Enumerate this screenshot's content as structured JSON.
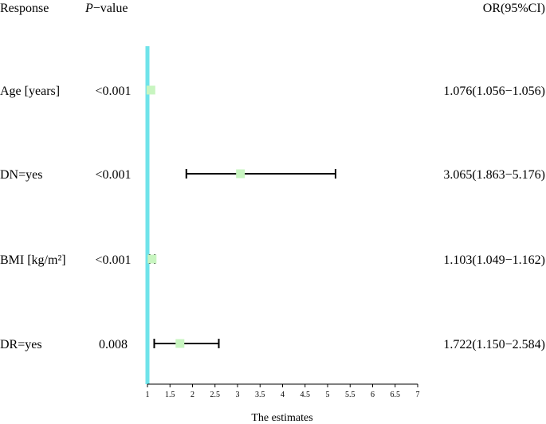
{
  "chart_data": {
    "type": "forest",
    "headers": {
      "response": "Response",
      "p_italic": "P",
      "p_rest": "−value",
      "or": "OR(95%CI)"
    },
    "rows": [
      {
        "response": "Age [years]",
        "p_value": "<0.001",
        "or_text": "1.076(1.056−1.056)",
        "estimate": 1.076,
        "ci_low": 1.056,
        "ci_high": 1.056
      },
      {
        "response": "DN=yes",
        "p_value": "<0.001",
        "or_text": "3.065(1.863−5.176)",
        "estimate": 3.065,
        "ci_low": 1.863,
        "ci_high": 5.176
      },
      {
        "response": "BMI [kg/m²]",
        "p_value": "<0.001",
        "or_text": "1.103(1.049−1.162)",
        "estimate": 1.103,
        "ci_low": 1.049,
        "ci_high": 1.162
      },
      {
        "response": "DR=yes",
        "p_value": "0.008",
        "or_text": "1.722(1.150−2.584)",
        "estimate": 1.722,
        "ci_low": 1.15,
        "ci_high": 2.584
      }
    ],
    "x_ticks": [
      "1",
      "1.5",
      "2",
      "2.5",
      "3",
      "3.5",
      "4",
      "4.5",
      "5",
      "5.5",
      "6",
      "6.5",
      "7"
    ],
    "xlim": [
      1,
      7
    ],
    "xlabel": "The estimates",
    "reference_line": 1,
    "colors": {
      "reference_line": "#6fe3ea",
      "point": "#c8f5c0",
      "whisker": "#000000"
    }
  }
}
